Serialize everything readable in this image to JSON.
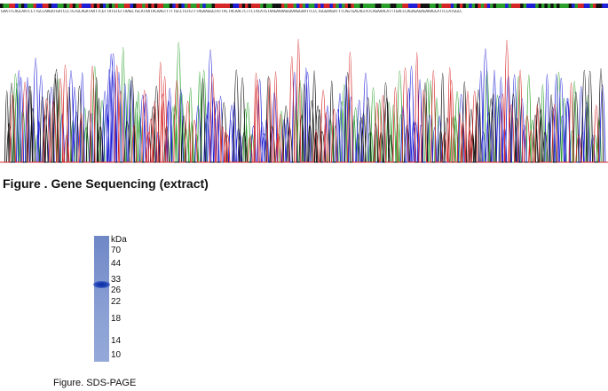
{
  "sequencing": {
    "title": "Figure . Gene Sequencing (extract)",
    "sequence": "GAATTCAGCAATCCTTGCCAAGATGATCCCTGTGCAGATAATTCGTTATGTGTTAAGCTGCATAATACAAGTTTTTGCCTGTGTTTAGAAGGGTATTACTACAACTCTTCTACATGTAAGAAAAGGAAAGGAATTCCCTGGGAAGATTTCAGTGACAGTATCAGAAACATTTGACCCAGAGAGAGAAAGCATTCCATGGCC",
    "base_colors": {
      "A": "#2ca02c",
      "C": "#1f1fd6",
      "G": "#111111",
      "T": "#d62728"
    },
    "chromatogram_trace_colors": [
      "#2ca02c",
      "#1f1fd6",
      "#111111",
      "#d62728"
    ]
  },
  "sds_page": {
    "caption": "Figure. SDS-PAGE",
    "unit_label": "kDa",
    "markers": [
      "70",
      "44",
      "33",
      "26",
      "22",
      "18",
      "14",
      "10"
    ],
    "band_kDa": 29,
    "gel_color": "#7f95cf",
    "band_color": "#0a2a9a"
  }
}
